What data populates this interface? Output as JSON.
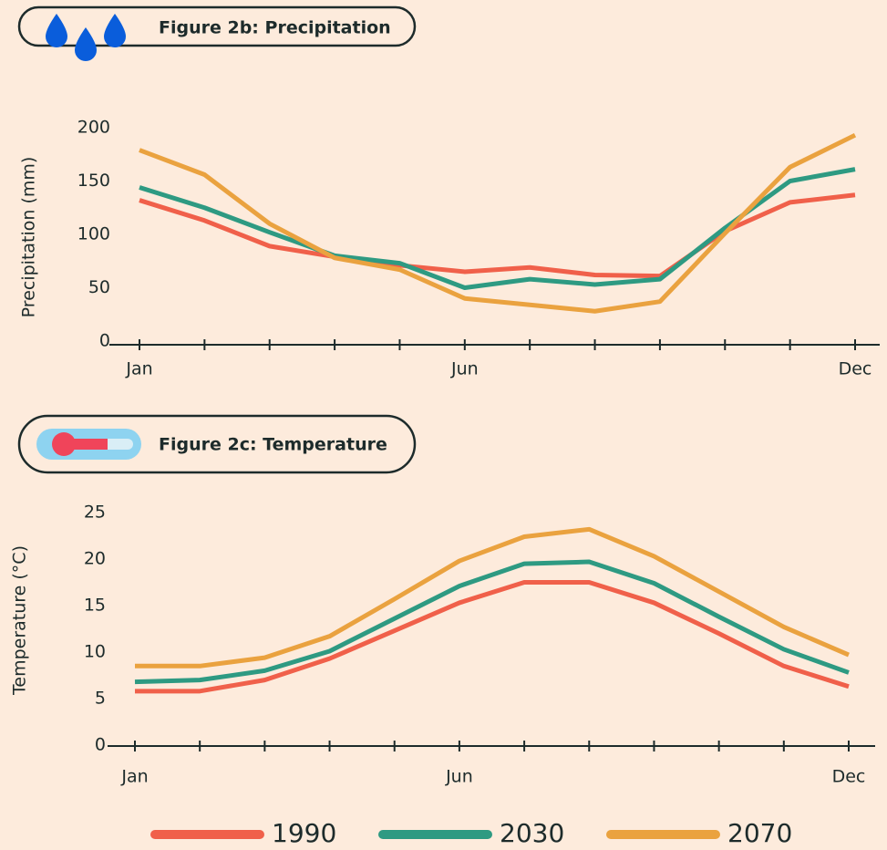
{
  "chart_data": [
    {
      "type": "line",
      "title": "Figure 2b: Precipitation",
      "y_label": "Precipitation (mm)",
      "categories": [
        "Jan",
        null,
        null,
        null,
        null,
        "Jun",
        null,
        null,
        null,
        null,
        null,
        "Dec"
      ],
      "ylim": [
        0,
        200
      ],
      "yticks": [
        0,
        50,
        100,
        150,
        200
      ],
      "series": [
        {
          "name": "1990",
          "color": "#f0604a",
          "values": [
            132,
            113,
            89,
            79,
            71,
            65,
            69,
            62,
            61,
            103,
            130,
            137
          ]
        },
        {
          "name": "2030",
          "color": "#2e9a82",
          "values": [
            144,
            125,
            102,
            80,
            73,
            50,
            58,
            53,
            58,
            106,
            150,
            161
          ]
        },
        {
          "name": "2070",
          "color": "#eaa23f",
          "values": [
            179,
            156,
            110,
            78,
            67,
            40,
            34,
            28,
            37,
            101,
            163,
            193
          ]
        }
      ]
    },
    {
      "type": "line",
      "title": "Figure 2c: Temperature",
      "y_label": "Temperature (°C)",
      "categories": [
        "Jan",
        null,
        null,
        null,
        null,
        "Jun",
        null,
        null,
        null,
        null,
        null,
        "Dec"
      ],
      "ylim": [
        0,
        25
      ],
      "yticks": [
        0,
        5,
        10,
        15,
        20,
        25
      ],
      "series": [
        {
          "color": "#f0604a",
          "values": [
            5.8,
            5.8,
            7.0,
            9.3,
            12.3,
            15.3,
            17.5,
            17.5,
            15.3,
            12.0,
            8.5,
            6.3
          ]
        },
        {
          "color": "#2e9a82",
          "values": [
            6.8,
            7.0,
            8.0,
            10.1,
            13.6,
            17.1,
            19.5,
            19.7,
            17.4,
            13.8,
            10.3,
            7.8
          ]
        },
        {
          "color": "#eaa23f",
          "values": [
            8.5,
            8.5,
            9.4,
            11.7,
            15.7,
            19.8,
            22.4,
            23.2,
            20.3,
            16.5,
            12.7,
            9.7
          ]
        }
      ]
    }
  ]
}
